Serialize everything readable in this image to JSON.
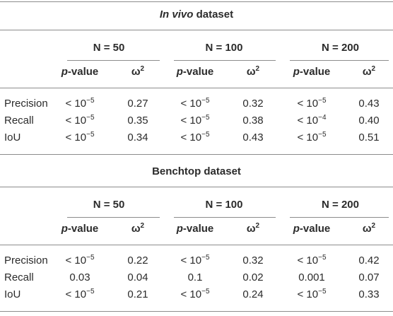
{
  "sections": [
    {
      "title_italic": "In vivo",
      "title_rest": " dataset",
      "groups": [
        "N = 50",
        "N = 100",
        "N = 200"
      ],
      "sub_p_italic": "p",
      "sub_p_rest": "-value",
      "sub_omega": "ω",
      "sub_omega_sup": "2",
      "rows": [
        {
          "label": "Precision",
          "cells": [
            {
              "p": "< 10",
              "exp": "−5",
              "w": "0.27"
            },
            {
              "p": "< 10",
              "exp": "−5",
              "w": "0.32"
            },
            {
              "p": "< 10",
              "exp": "−5",
              "w": "0.43"
            }
          ]
        },
        {
          "label": "Recall",
          "cells": [
            {
              "p": "< 10",
              "exp": "−5",
              "w": "0.35"
            },
            {
              "p": "< 10",
              "exp": "−5",
              "w": "0.38"
            },
            {
              "p": "< 10",
              "exp": "−4",
              "w": "0.40"
            }
          ]
        },
        {
          "label": "IoU",
          "cells": [
            {
              "p": "< 10",
              "exp": "−5",
              "w": "0.34"
            },
            {
              "p": "< 10",
              "exp": "−5",
              "w": "0.43"
            },
            {
              "p": "< 10",
              "exp": "−5",
              "w": "0.51"
            }
          ]
        }
      ]
    },
    {
      "title_italic": "",
      "title_rest": "Benchtop dataset",
      "groups": [
        "N = 50",
        "N = 100",
        "N = 200"
      ],
      "sub_p_italic": "p",
      "sub_p_rest": "-value",
      "sub_omega": "ω",
      "sub_omega_sup": "2",
      "rows": [
        {
          "label": "Precision",
          "cells": [
            {
              "p": "< 10",
              "exp": "−5",
              "w": "0.22"
            },
            {
              "p": "< 10",
              "exp": "−5",
              "w": "0.32"
            },
            {
              "p": "< 10",
              "exp": "−5",
              "w": "0.42"
            }
          ]
        },
        {
          "label": "Recall",
          "cells": [
            {
              "p": "0.03",
              "exp": "",
              "w": "0.04"
            },
            {
              "p": "0.1",
              "exp": "",
              "w": "0.02"
            },
            {
              "p": "0.001",
              "exp": "",
              "w": "0.07"
            }
          ]
        },
        {
          "label": "IoU",
          "cells": [
            {
              "p": "< 10",
              "exp": "−5",
              "w": "0.21"
            },
            {
              "p": "< 10",
              "exp": "−5",
              "w": "0.24"
            },
            {
              "p": "< 10",
              "exp": "−5",
              "w": "0.33"
            }
          ]
        }
      ]
    }
  ]
}
